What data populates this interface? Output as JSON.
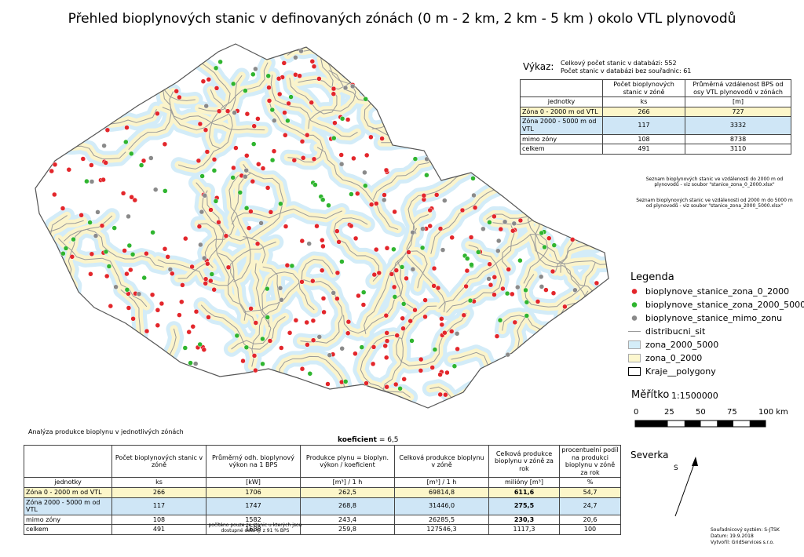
{
  "title": "Přehled bioplynových stanic v definovaných zónách (0 m - 2 km, 2 km - 5 km ) okolo VTL plynovodů",
  "summary": {
    "label": "Výkaz:",
    "lines": [
      "Celkový počet stanic v databázi: 552",
      "Počet stanic v databázi bez souřadnic: 61"
    ]
  },
  "zone_table": {
    "columns": [
      "",
      "Počet bioplynových stanic v zóně",
      "Průměrná vzdálenost BPS od osy VTL plynovodů v zónách"
    ],
    "units": [
      "jednotky",
      "ks",
      "[m]"
    ],
    "rows": [
      [
        "Zóna 0 - 2000 m od VTL",
        "266",
        "727"
      ],
      [
        "Zóna 2000 - 5000 m od VTL",
        "117",
        "3332"
      ],
      [
        "mimo zóny",
        "108",
        "8738"
      ],
      [
        "celkem",
        "491",
        "3110"
      ]
    ]
  },
  "files": [
    "Seznam bioplynových stanic ve vzdálenosti do 2000 m od plynovodů - viz soubor \"stanice_zona_0_2000.xlsx\"",
    "Seznam bioplynových stanic ve vzdálenosti od 2000 m do 5000 m od plynovodů - viz soubor \"stanice_zona_2000_5000.xlsx\""
  ],
  "legend": {
    "title": "Legenda",
    "items": [
      {
        "label": "bioplynove_stanice_zona_0_2000",
        "symbol": "dot",
        "color": "#e3262b"
      },
      {
        "label": "bioplynove_stanice_zona_2000_5000",
        "symbol": "dot",
        "color": "#2fb52f"
      },
      {
        "label": "bioplynove_stanice_mimo_zonu",
        "symbol": "dot",
        "color": "#8a8a8a"
      },
      {
        "label": "distribucni_sit",
        "symbol": "line",
        "color": "#9a9a9a"
      },
      {
        "label": "zona_2000_5000",
        "symbol": "box",
        "color": "#d4edf8"
      },
      {
        "label": "zona_0_2000",
        "symbol": "box",
        "color": "#fcf7cf"
      },
      {
        "label": "Kraje__polygony",
        "symbol": "box",
        "color": "#ffffff"
      }
    ]
  },
  "scale": {
    "title": "Měřítko",
    "ratio": "1:1500000",
    "ticks": [
      "0",
      "25",
      "50",
      "75",
      "100 km"
    ]
  },
  "north": {
    "title": "Severka",
    "letter": "S"
  },
  "production": {
    "title": "Analýza produkce bioplynu v jednotlivých zónách",
    "coefficient": {
      "label": "koeficient",
      "value": "= 6,5"
    },
    "columns": [
      "",
      "Počet bioplynových stanic v zóně",
      "Průměrný odh. bioplynový výkon na 1 BPS",
      "Produkce plynu = bioplyn. výkon / koeficient",
      "Celková produkce bioplynu v zóně",
      "Celková produkce bioplynu v zóně za rok",
      "procentuelní podíl na produkci bioplynu v zóně za rok"
    ],
    "units": [
      "jednotky",
      "ks",
      "[kW]",
      "[m³] / 1 h",
      "[m³] / 1 h",
      "milióny [m³]",
      "%"
    ],
    "rows": [
      [
        "Zóna 0 - 2000 m od VTL",
        "266",
        "1706",
        "262,5",
        "69814,8",
        "611,6",
        "54,7"
      ],
      [
        "Zóna 2000 - 5000 m od VTL",
        "117",
        "1747",
        "268,8",
        "31446,0",
        "275,5",
        "24,7"
      ],
      [
        "mimo zóny",
        "108",
        "1582",
        "243,4",
        "26285,5",
        "230,3",
        "20,6"
      ],
      [
        "celkem",
        "491",
        "1688",
        "259,8",
        "127546,3",
        "1117,3",
        "100"
      ]
    ],
    "note": "počítáno pouze ze stanic u kterých jsou dostupné data tj. z 91 % BPS"
  },
  "credits": [
    "Souřadnicový systém: S-JTSK",
    "Datum: 19.9.2018",
    "Vytvořil: GridServices s.r.o."
  ]
}
